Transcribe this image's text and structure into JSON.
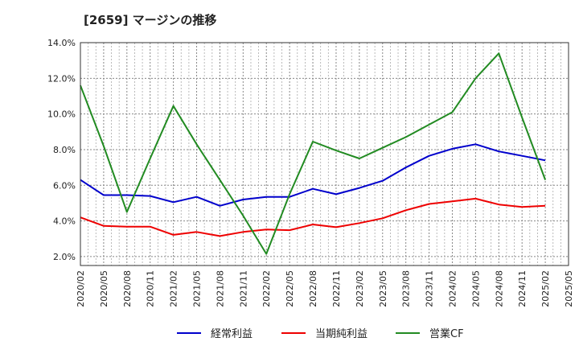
{
  "chart_data": {
    "type": "line",
    "title": "[2659]  マージンの推移",
    "x": [
      "2020/02",
      "2020/05",
      "2020/08",
      "2020/11",
      "2021/02",
      "2021/05",
      "2021/08",
      "2021/11",
      "2022/02",
      "2022/05",
      "2022/08",
      "2022/11",
      "2023/02",
      "2023/05",
      "2023/08",
      "2023/11",
      "2024/02",
      "2024/05",
      "2024/08",
      "2024/11",
      "2025/02",
      "2025/05"
    ],
    "xlabel": "",
    "ylabel": "",
    "ylim": [
      1.5,
      14.0
    ],
    "yticks": [
      2.0,
      4.0,
      6.0,
      8.0,
      10.0,
      12.0,
      14.0
    ],
    "ytick_labels": [
      "2.0%",
      "4.0%",
      "6.0%",
      "8.0%",
      "10.0%",
      "12.0%",
      "14.0%"
    ],
    "grid": true,
    "legend_position": "bottom",
    "series": [
      {
        "name": "経常利益",
        "color": "#0000cc",
        "values": [
          6.3,
          5.45,
          5.45,
          5.4,
          5.05,
          5.35,
          4.85,
          5.2,
          5.35,
          5.35,
          5.8,
          5.5,
          5.85,
          6.25,
          7.0,
          7.65,
          8.05,
          8.3,
          7.9,
          7.65,
          7.4,
          null
        ]
      },
      {
        "name": "当期純利益",
        "color": "#ee0000",
        "values": [
          4.2,
          3.72,
          3.68,
          3.68,
          3.22,
          3.38,
          3.15,
          3.38,
          3.52,
          3.48,
          3.8,
          3.65,
          3.88,
          4.15,
          4.6,
          4.95,
          5.1,
          5.25,
          4.92,
          4.78,
          4.85,
          null
        ]
      },
      {
        "name": "営業CF",
        "color": "#228b22",
        "values": [
          11.6,
          8.2,
          4.5,
          7.5,
          10.45,
          8.3,
          6.3,
          4.3,
          2.15,
          5.5,
          8.45,
          7.95,
          7.5,
          8.1,
          8.7,
          9.4,
          10.1,
          12.0,
          13.4,
          9.8,
          6.3,
          null
        ]
      }
    ]
  }
}
